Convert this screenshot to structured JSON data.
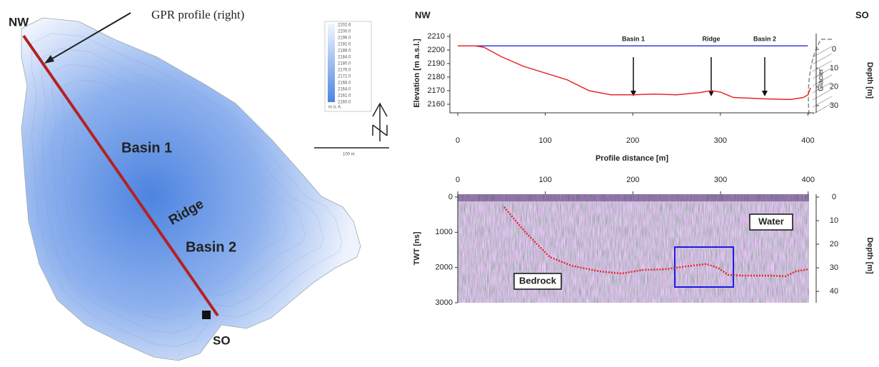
{
  "map": {
    "labels": {
      "nw": "NW",
      "so": "SO",
      "profile": "GPR profile (right)",
      "basin1": "Basin 1",
      "ridge": "Ridge",
      "basin2": "Basin 2"
    },
    "legend": {
      "values": [
        "2202.6",
        "2200.0",
        "2196.0",
        "2192.0",
        "2188.0",
        "2184.0",
        "2180.0",
        "2176.0",
        "2172.0",
        "2168.0",
        "2164.0",
        "2161.0",
        "2160.0"
      ],
      "unit": "m ü. A."
    },
    "scale": "100 m"
  },
  "chart_data": [
    {
      "type": "line",
      "corner_left": "NW",
      "corner_right": "SO",
      "annotations": [
        "Basin 1",
        "Ridge",
        "Basin 2"
      ],
      "glacier": "Glacier",
      "xlabel": "Profile distance [m]",
      "ylabel": "Elevation [m a.s.l.]",
      "y2label": "Depth [m]",
      "xlim": [
        -9,
        407
      ],
      "xticks": [
        0,
        100,
        200,
        300,
        400
      ],
      "ylim": [
        2153.7,
        2212.1
      ],
      "yticks": [
        2160,
        2170,
        2180,
        2190,
        2200,
        2210
      ],
      "y2lim": [
        33.8,
        -8.4
      ],
      "y2ticks": [
        0,
        10,
        20,
        30
      ],
      "series": [
        {
          "color": "#3a3ae0",
          "x": [
            0,
            400
          ],
          "values": [
            2203,
            2203
          ]
        },
        {
          "color": "#e8262b",
          "x": [
            0,
            20,
            30,
            50,
            75,
            100,
            125,
            150,
            175,
            200,
            225,
            250,
            275,
            290,
            300,
            315,
            350,
            380,
            395,
            400,
            403
          ],
          "values": [
            2203,
            2203,
            2202,
            2195,
            2188,
            2183,
            2178,
            2170,
            2167,
            2167,
            2167.5,
            2167,
            2168.5,
            2170,
            2169,
            2165,
            2164,
            2163.5,
            2165,
            2167,
            2172
          ]
        }
      ]
    },
    {
      "type": "radargram",
      "annotations": [
        "Water",
        "Bedrock"
      ],
      "ylabel": "TWT [ns]",
      "y2label": "Depth [m]",
      "xlim": [
        0,
        401
      ],
      "xticks": [
        0,
        100,
        200,
        300,
        400
      ],
      "ylim": [
        3000,
        -81
      ],
      "yticks": [
        0,
        1000,
        2000,
        3000
      ],
      "y2lim": [
        44.8,
        -1.2
      ],
      "y2ticks": [
        0,
        10,
        20,
        30,
        40
      ],
      "series": [
        {
          "color": "#e8262b",
          "x": [
            53,
            77,
            105,
            130,
            162,
            187,
            211,
            236,
            260,
            284,
            297,
            309,
            325,
            358,
            374,
            386,
            400
          ],
          "values": [
            284,
            994,
            1700,
            1950,
            2110,
            2170,
            2070,
            2050,
            1970,
            1900,
            2010,
            2210,
            2230,
            2230,
            2250,
            2110,
            2050
          ]
        }
      ]
    }
  ]
}
